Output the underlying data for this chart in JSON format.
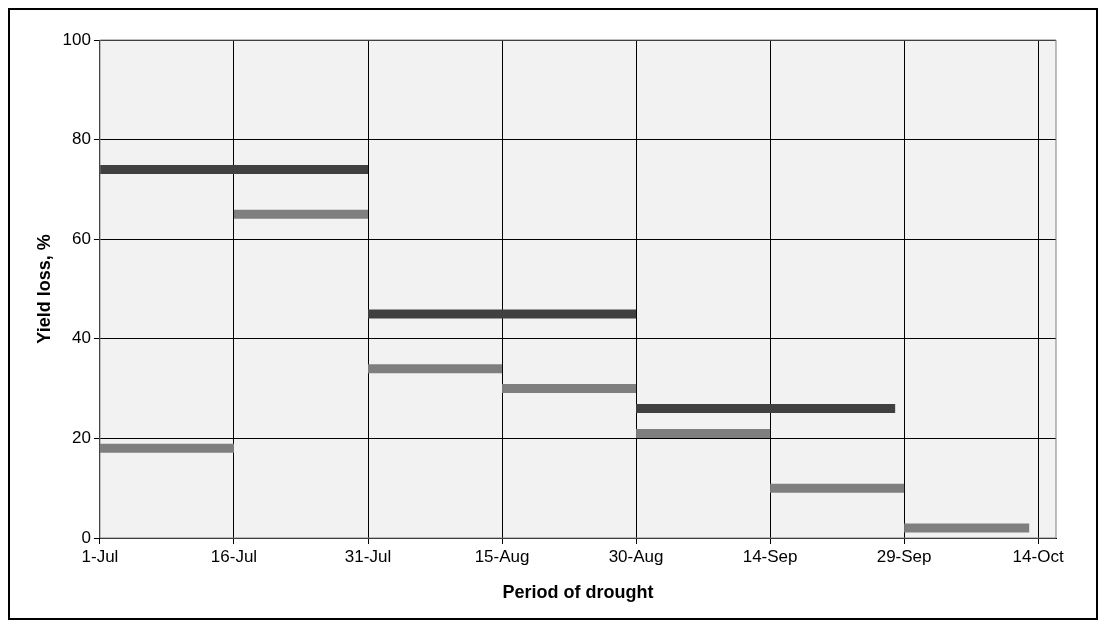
{
  "chart_data": {
    "type": "line",
    "xlabel": "Period of drought",
    "ylabel": "Yield loss, %",
    "xlim": [
      "--07-01",
      "--10-16"
    ],
    "xticks": [
      {
        "value": "--07-01",
        "label": "1-Jul"
      },
      {
        "value": "--07-16",
        "label": "16-Jul"
      },
      {
        "value": "--07-31",
        "label": "31-Jul"
      },
      {
        "value": "--08-15",
        "label": "15-Aug"
      },
      {
        "value": "--08-30",
        "label": "30-Aug"
      },
      {
        "value": "--09-14",
        "label": "14-Sep"
      },
      {
        "value": "--09-29",
        "label": "29-Sep"
      },
      {
        "value": "--10-14",
        "label": "14-Oct"
      }
    ],
    "ylim": [
      0,
      100
    ],
    "yticks": [
      0,
      20,
      40,
      60,
      80,
      100
    ],
    "grid": true,
    "legend": false,
    "series": [
      {
        "color": "#404040",
        "x": [
          "--07-01",
          "--07-31"
        ],
        "values": [
          74,
          74
        ]
      },
      {
        "color": "#404040",
        "x": [
          "--07-31",
          "--08-30"
        ],
        "values": [
          45,
          45
        ]
      },
      {
        "color": "#404040",
        "x": [
          "--08-30",
          "--09-28"
        ],
        "values": [
          26,
          26
        ]
      },
      {
        "color": "#7f7f7f",
        "x": [
          "--07-01",
          "--07-16"
        ],
        "values": [
          18,
          18
        ]
      },
      {
        "color": "#7f7f7f",
        "x": [
          "--07-16",
          "--07-31"
        ],
        "values": [
          65,
          65
        ]
      },
      {
        "color": "#7f7f7f",
        "x": [
          "--07-31",
          "--08-15"
        ],
        "values": [
          34,
          34
        ]
      },
      {
        "color": "#7f7f7f",
        "x": [
          "--08-15",
          "--08-30"
        ],
        "values": [
          30,
          30
        ]
      },
      {
        "color": "#7f7f7f",
        "x": [
          "--08-30",
          "--09-14"
        ],
        "values": [
          21,
          21
        ]
      },
      {
        "color": "#7f7f7f",
        "x": [
          "--09-14",
          "--09-29"
        ],
        "values": [
          10,
          10
        ]
      },
      {
        "color": "#7f7f7f",
        "x": [
          "--09-29",
          "--10-13"
        ],
        "values": [
          2,
          2
        ]
      }
    ]
  }
}
